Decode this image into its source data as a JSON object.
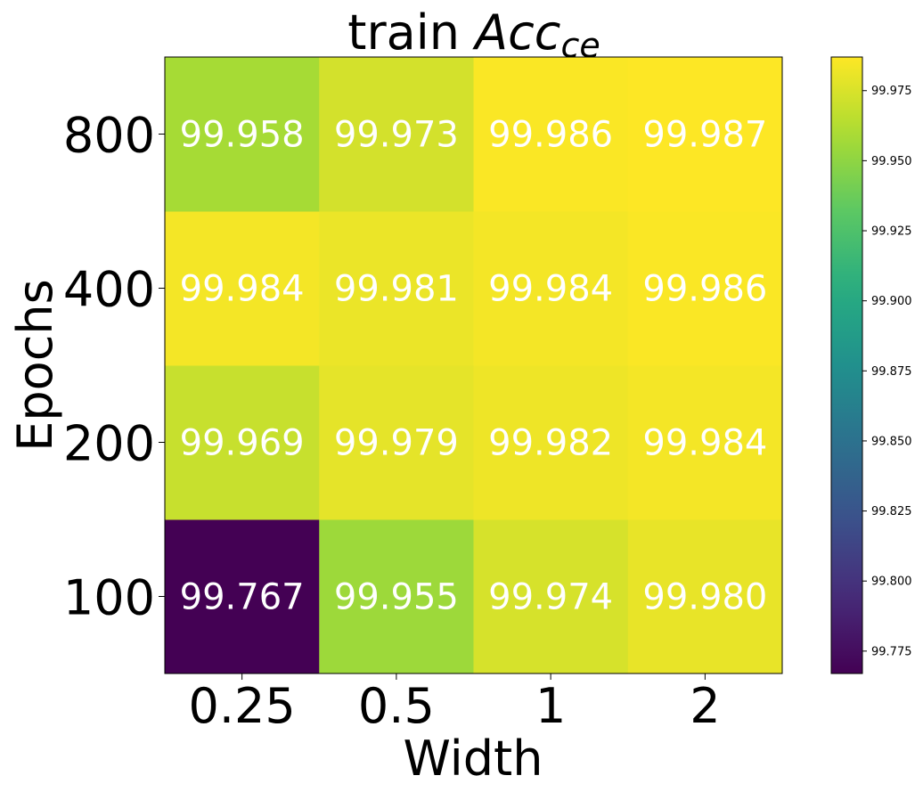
{
  "chart_data": {
    "type": "heatmap",
    "title_prefix": "train ",
    "title_math_main": "Acc",
    "title_math_sub": "ce",
    "xlabel": "Width",
    "ylabel": "Epochs",
    "x_categories": [
      "0.25",
      "0.5",
      "1",
      "2"
    ],
    "y_categories": [
      "100",
      "200",
      "400",
      "800"
    ],
    "values": [
      [
        99.767,
        99.955,
        99.974,
        99.98
      ],
      [
        99.969,
        99.979,
        99.982,
        99.984
      ],
      [
        99.984,
        99.981,
        99.984,
        99.986
      ],
      [
        99.958,
        99.973,
        99.986,
        99.987
      ]
    ],
    "cell_labels": [
      [
        "99.767",
        "99.955",
        "99.974",
        "99.980"
      ],
      [
        "99.969",
        "99.979",
        "99.982",
        "99.984"
      ],
      [
        "99.984",
        "99.981",
        "99.984",
        "99.986"
      ],
      [
        "99.958",
        "99.973",
        "99.986",
        "99.987"
      ]
    ],
    "colormap": "viridis",
    "value_range": [
      99.767,
      99.987
    ],
    "colorbar_ticks": [
      "99.775",
      "99.800",
      "99.825",
      "99.850",
      "99.875",
      "99.900",
      "99.925",
      "99.950",
      "99.975"
    ],
    "colorbar_tick_values": [
      99.775,
      99.8,
      99.825,
      99.85,
      99.875,
      99.9,
      99.925,
      99.95,
      99.975
    ],
    "annotation_color": "#ffffff",
    "grid": false
  }
}
